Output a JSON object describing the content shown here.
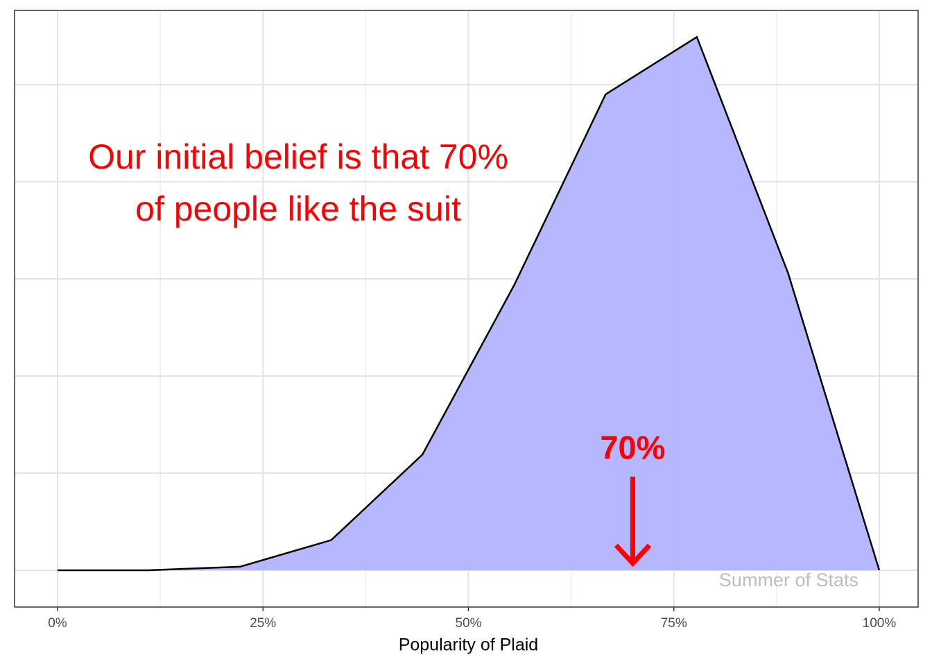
{
  "chart_data": {
    "type": "area",
    "x_label": "Popularity of Plaid",
    "x": [
      0,
      11.1,
      22.2,
      33.3,
      44.4,
      55.6,
      66.7,
      77.8,
      88.9,
      100
    ],
    "series": [
      {
        "color": "#b3b3ff",
        "line_color": "#000000",
        "values": [
          0,
          0,
          0.036,
          0.31,
          1.19,
          2.94,
          4.9,
          5.49,
          3.06,
          0
        ]
      }
    ],
    "xlim": [
      -5.23,
      104.73
    ],
    "xticks": [
      {
        "value": 0,
        "label": "0%"
      },
      {
        "value": 25,
        "label": "25%"
      },
      {
        "value": 50,
        "label": "50%"
      },
      {
        "value": 75,
        "label": "75%"
      },
      {
        "value": 100,
        "label": "100%"
      }
    ],
    "ylim": [
      -0.379,
      5.764
    ],
    "yticks": [
      0,
      1,
      2,
      3,
      4,
      5
    ],
    "grid": true,
    "annotation": {
      "lines": [
        "Our initial belief is that 70%",
        "of people like the suit"
      ],
      "color": "#ff0000"
    },
    "marker": {
      "x": 70,
      "label": "70%",
      "color": "#ff0000"
    },
    "watermark": "Summer of Stats"
  }
}
